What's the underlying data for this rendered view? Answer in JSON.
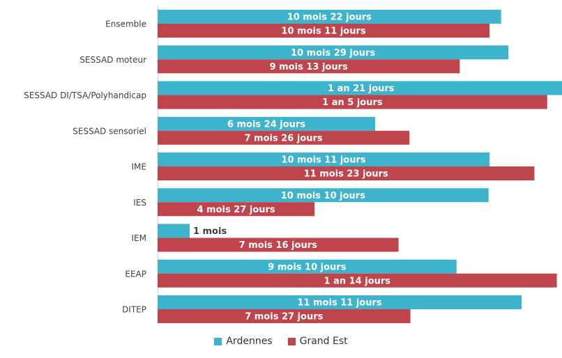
{
  "chart_data": {
    "type": "bar",
    "orientation": "horizontal",
    "categories": [
      "Ensemble",
      "SESSAD moteur",
      "SESSAD DI/TSA/Polyhandicap",
      "SESSAD sensoriel",
      "IME",
      "IES",
      "IEM",
      "EEAP",
      "DITEP"
    ],
    "series": [
      {
        "name": "Ardennes",
        "color": "#3eb3cc",
        "values": [
          10.72,
          10.95,
          12.7,
          6.79,
          10.36,
          10.33,
          1.0,
          9.33,
          11.36
        ],
        "labels": [
          "10 mois 22 jours",
          "10 mois 29 jours",
          "1 an 21 jours",
          "6 mois 24 jours",
          "10 mois 11 jours",
          "10 mois 10 jours",
          "1 mois",
          "9 mois 10 jours",
          "11 mois 11 jours"
        ]
      },
      {
        "name": "Grand Est",
        "color": "#c0444c",
        "values": [
          10.36,
          9.43,
          12.16,
          7.86,
          11.76,
          4.9,
          7.52,
          12.46,
          7.89
        ],
        "labels": [
          "10 mois 11 jours",
          "9 mois 13 jours",
          "1 an 5 jours",
          "7 mois 26 jours",
          "11 mois 23 jours",
          "4 mois 27 jours",
          "7 mois 16 jours",
          "1 an 14 jours",
          "7 mois 27 jours"
        ]
      }
    ],
    "value_unit": "mois",
    "xlim": [
      0,
      12.6
    ],
    "grid": false,
    "legend_position": "bottom"
  }
}
